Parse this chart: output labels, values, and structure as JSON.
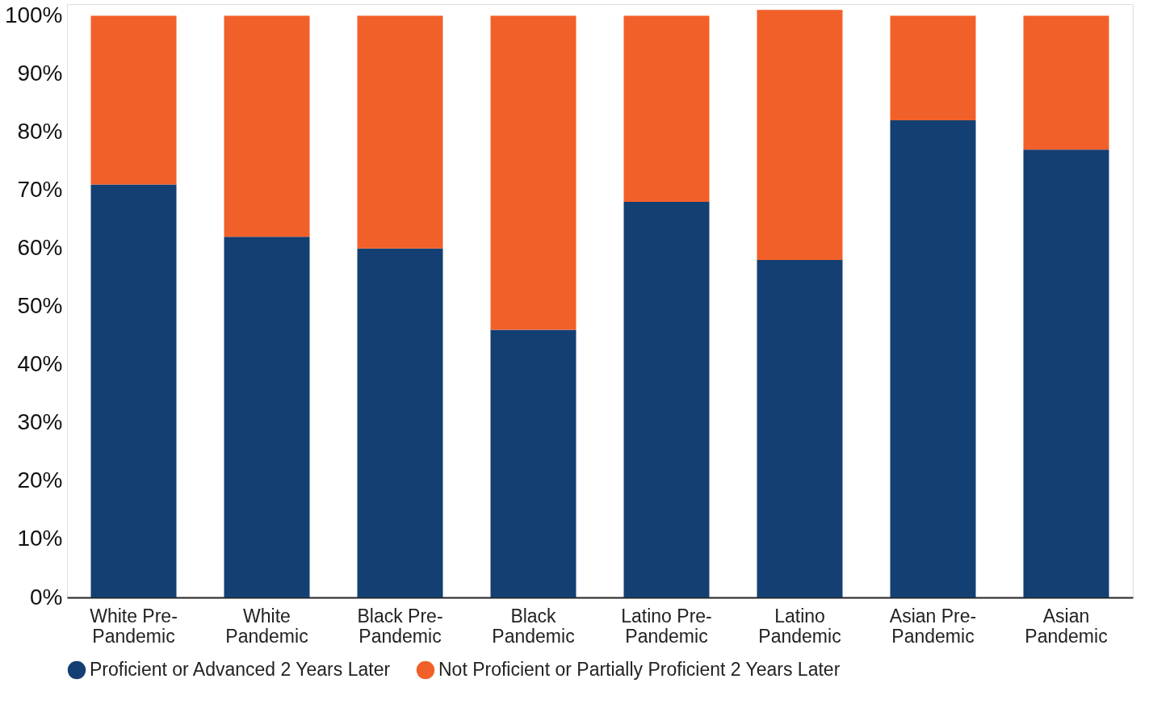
{
  "chart_data": {
    "type": "bar",
    "stacked": true,
    "categories": [
      "White Pre-Pandemic",
      "White Pandemic",
      "Black Pre-Pandemic",
      "Black Pandemic",
      "Latino Pre-Pandemic",
      "Latino Pandemic",
      "Asian Pre-Pandemic",
      "Asian Pandemic"
    ],
    "series": [
      {
        "name": "Proficient or Advanced 2 Years Later",
        "color": "#143f73",
        "values": [
          71,
          62,
          60,
          46,
          68,
          58,
          82,
          77
        ]
      },
      {
        "name": "Not Proficient or Partially Proficient 2 Years Later",
        "color": "#f2602a",
        "values": [
          29,
          38,
          40,
          54,
          32,
          43,
          18,
          23
        ]
      }
    ],
    "ylim": [
      0,
      102
    ],
    "yticks": [
      {
        "value": 0,
        "label": "0%"
      },
      {
        "value": 10,
        "label": "10%"
      },
      {
        "value": 20,
        "label": "20%"
      },
      {
        "value": 30,
        "label": "30%"
      },
      {
        "value": 40,
        "label": "40%"
      },
      {
        "value": 50,
        "label": "50%"
      },
      {
        "value": 60,
        "label": "60%"
      },
      {
        "value": 70,
        "label": "70%"
      },
      {
        "value": 80,
        "label": "80%"
      },
      {
        "value": 90,
        "label": "90%"
      },
      {
        "value": 100,
        "label": "100%"
      }
    ],
    "grid": false,
    "legend": "bottom"
  }
}
